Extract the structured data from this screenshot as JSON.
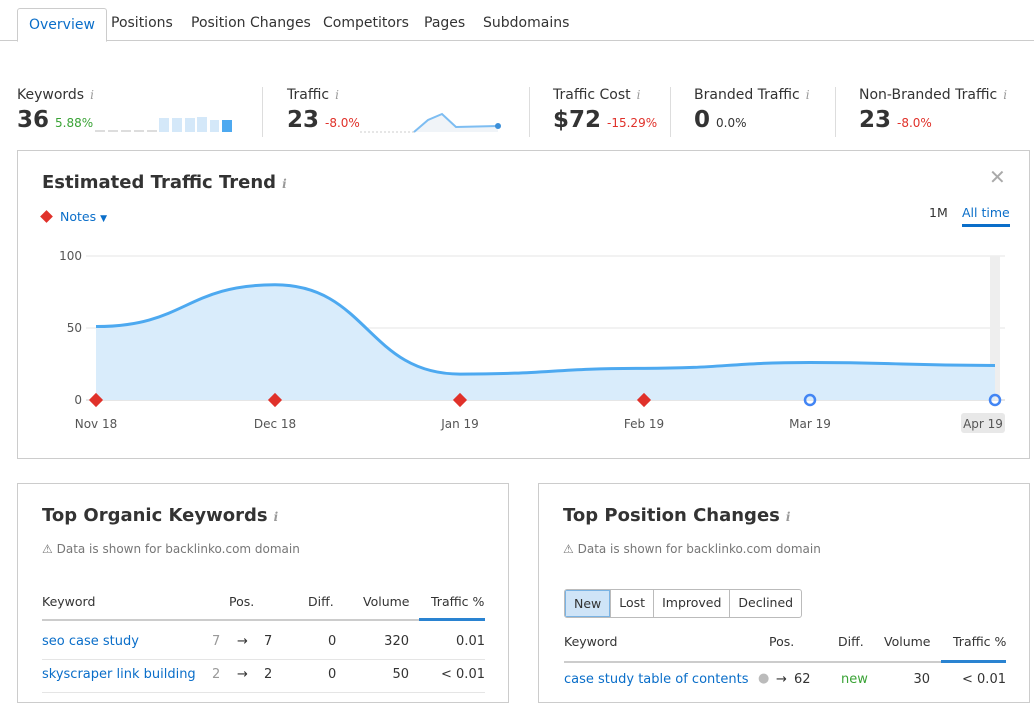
{
  "tabs": [
    "Overview",
    "Positions",
    "Position Changes",
    "Competitors",
    "Pages",
    "Subdomains"
  ],
  "metrics": [
    {
      "label": "Keywords",
      "value": "36",
      "change": "5.88%",
      "trend": "up"
    },
    {
      "label": "Traffic",
      "value": "23",
      "change": "-8.0%",
      "trend": "down"
    },
    {
      "label": "Traffic Cost",
      "value": "$72",
      "change": "-15.29%",
      "trend": "down"
    },
    {
      "label": "Branded Traffic",
      "value": "0",
      "change": "0.0%",
      "trend": "flat"
    },
    {
      "label": "Non-Branded Traffic",
      "value": "23",
      "change": "-8.0%",
      "trend": "down"
    }
  ],
  "trend": {
    "title": "Estimated Traffic Trend",
    "notes_label": "Notes",
    "range_options": [
      "1M",
      "All time"
    ],
    "selected_range": "All time",
    "chart_data": {
      "type": "area",
      "x": [
        "Nov 18",
        "Dec 18",
        "Jan 19",
        "Feb 19",
        "Mar 19",
        "Apr 19"
      ],
      "values": [
        51,
        80,
        18,
        22,
        26,
        24
      ],
      "ylim": [
        0,
        100
      ],
      "yticks": [
        "0",
        "50",
        "100"
      ],
      "grid": true,
      "markers": [
        "note",
        "note",
        "note",
        "note",
        "google",
        "google"
      ],
      "color": "#4da9f0"
    }
  },
  "top_keywords": {
    "title": "Top Organic Keywords",
    "notice": "Data is shown for backlinko.com domain",
    "columns": [
      "Keyword",
      "Pos.",
      "Diff.",
      "Volume",
      "Traffic %"
    ],
    "rows": [
      {
        "keyword": "seo case study",
        "prev": "7",
        "pos": "7",
        "diff": "0",
        "volume": "320",
        "traffic": "0.01"
      },
      {
        "keyword": "skyscraper link building",
        "prev": "2",
        "pos": "2",
        "diff": "0",
        "volume": "50",
        "traffic": "< 0.01"
      }
    ]
  },
  "top_changes": {
    "title": "Top Position Changes",
    "notice": "Data is shown for backlinko.com domain",
    "filters": [
      "New",
      "Lost",
      "Improved",
      "Declined"
    ],
    "selected_filter": "New",
    "columns": [
      "Keyword",
      "Pos.",
      "Diff.",
      "Volume",
      "Traffic %"
    ],
    "rows": [
      {
        "keyword": "case study table of contents",
        "pos": "62",
        "diff": "new",
        "volume": "30",
        "traffic": "< 0.01"
      }
    ]
  }
}
